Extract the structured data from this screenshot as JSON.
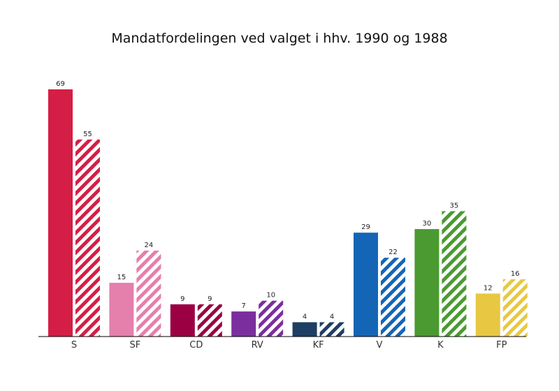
{
  "chart_data": {
    "type": "bar",
    "title": "Mandatfordelingen ved valget i hhv. 1990 og 1988",
    "xlabel": "",
    "ylabel": "",
    "ylim": [
      0,
      69
    ],
    "grid": false,
    "categories": [
      "S",
      "SF",
      "CD",
      "RV",
      "KF",
      "V",
      "K",
      "FP"
    ],
    "colors": [
      "#d41e45",
      "#e57fac",
      "#9b0042",
      "#7b2f9e",
      "#1f3e63",
      "#1565b6",
      "#4a9a31",
      "#e8c842"
    ],
    "series": [
      {
        "pattern": "solid",
        "values": [
          69,
          15,
          9,
          7,
          4,
          29,
          30,
          12
        ]
      },
      {
        "pattern": "hatched",
        "values": [
          55,
          24,
          9,
          10,
          4,
          22,
          35,
          16
        ]
      }
    ]
  }
}
